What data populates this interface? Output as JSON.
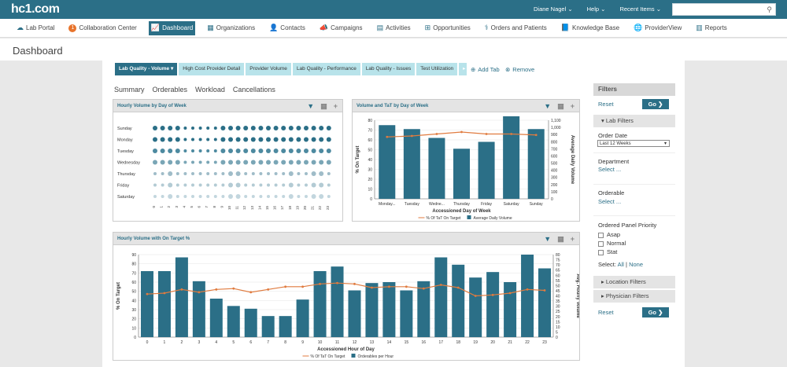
{
  "app": {
    "logo": "hc1.com"
  },
  "topbar": {
    "user": "Diane Nagel ⌄",
    "help": "Help ⌄",
    "recent": "Recent Items ⌄",
    "search_placeholder": ""
  },
  "nav": {
    "items": [
      "Lab Portal",
      "Collaboration Center",
      "Dashboard",
      "Organizations",
      "Contacts",
      "Campaigns",
      "Activities",
      "Opportunities",
      "Orders and Patients",
      "Knowledge Base",
      "ProviderView",
      "Reports"
    ],
    "badge": "1"
  },
  "page": {
    "title": "Dashboard"
  },
  "tabs": {
    "items": [
      "Lab Quality - Volume",
      "High Cost Provider Detail",
      "Provider Volume",
      "Lab Quality - Performance",
      "Lab Quality - Issues",
      "Test Utilization"
    ],
    "add": "Add Tab",
    "remove": "Remove"
  },
  "subtabs": [
    "Summary",
    "Orderables",
    "Workload",
    "Cancellations"
  ],
  "panels": {
    "p1": "Hourly Volume by Day of Week",
    "p2": "Volume and TaT by Day of Week",
    "p3": "Hourly Volume with On Target %"
  },
  "filters": {
    "title": "Filters",
    "reset": "Reset",
    "go": "Go ❯",
    "lab_filters": "▾ Lab Filters",
    "order_date": "Order Date",
    "order_date_value": "Last 12 Weeks",
    "department": "Department",
    "select": "Select ...",
    "orderable": "Orderable",
    "priority": "Ordered Panel Priority",
    "priorities": [
      "Asap",
      "Normal",
      "Stat"
    ],
    "select_label": "Select:",
    "all": "All",
    "none": "None",
    "location": "▸ Location Filters",
    "physician": "▸ Physician Filters"
  },
  "chart_data": [
    {
      "type": "heatmap",
      "title": "Hourly Volume by Day of Week",
      "rows": [
        "Sunday",
        "Monday",
        "Tuesday",
        "Wednesday",
        "Thursday",
        "Friday",
        "Saturday"
      ],
      "columns": [
        "0",
        "1",
        "2",
        "3",
        "4",
        "5",
        "6",
        "7",
        "8",
        "9",
        "10",
        "11",
        "12",
        "13",
        "14",
        "15",
        "16",
        "17",
        "18",
        "19",
        "20",
        "21",
        "22",
        "23"
      ],
      "sizes": [
        [
          3,
          3,
          3,
          3,
          2,
          2,
          2,
          2,
          2,
          3,
          3,
          3,
          3,
          3,
          3,
          3,
          3,
          3,
          3,
          3,
          3,
          3,
          3,
          3
        ],
        [
          3,
          3,
          3,
          3,
          2,
          2,
          2,
          2,
          2,
          3,
          3,
          3,
          3,
          3,
          3,
          3,
          3,
          3,
          3,
          3,
          3,
          3,
          3,
          3
        ],
        [
          3,
          3,
          3,
          3,
          2,
          2,
          2,
          2,
          2,
          3,
          3,
          3,
          3,
          3,
          3,
          3,
          3,
          3,
          3,
          3,
          3,
          3,
          3,
          3
        ],
        [
          3,
          3,
          3,
          3,
          2,
          2,
          2,
          2,
          2,
          3,
          3,
          3,
          3,
          3,
          3,
          3,
          3,
          3,
          3,
          3,
          3,
          3,
          3,
          3
        ],
        [
          2,
          2,
          3,
          2,
          2,
          2,
          2,
          2,
          2,
          2,
          3,
          3,
          2,
          2,
          2,
          2,
          2,
          2,
          3,
          2,
          2,
          3,
          3,
          2
        ],
        [
          2,
          2,
          3,
          2,
          2,
          2,
          2,
          2,
          2,
          2,
          3,
          3,
          2,
          2,
          2,
          2,
          2,
          2,
          3,
          2,
          2,
          3,
          3,
          2
        ],
        [
          2,
          2,
          3,
          2,
          2,
          2,
          2,
          2,
          2,
          2,
          3,
          3,
          2,
          2,
          2,
          2,
          2,
          2,
          3,
          2,
          2,
          3,
          3,
          2
        ]
      ],
      "colors": [
        "#2b6f87",
        "#2b6f87",
        "#4d8aa0",
        "#7aa6b6",
        "#9fbcc8",
        "#b3cbd4",
        "#c2d6de"
      ]
    },
    {
      "type": "bar",
      "title": "Volume and TaT by Day of Week",
      "categories": [
        "Monday...",
        "Tuesday",
        "Wedne...",
        "Thursday",
        "Friday",
        "Saturday",
        "Sunday"
      ],
      "values": [
        75,
        71,
        62,
        51,
        58,
        84,
        71
      ],
      "line": [
        63,
        64,
        66,
        68,
        66,
        66,
        65
      ],
      "xlabel": "Accessioned Day of Week",
      "ylabel": "% On Target",
      "y2label": "Average Daily Volume",
      "ylim": [
        0,
        80
      ],
      "yticks": [
        "0",
        "10",
        "20",
        "30",
        "40",
        "50",
        "60",
        "70",
        "80"
      ],
      "y2ticks": [
        "0",
        "100",
        "200",
        "300",
        "400",
        "500",
        "600",
        "700",
        "800",
        "900",
        "1,000",
        "1,100"
      ],
      "legend": [
        "% Of TaT On Target",
        "Average Daily Volume"
      ]
    },
    {
      "type": "bar",
      "title": "Hourly Volume with On Target %",
      "categories": [
        "0",
        "1",
        "2",
        "3",
        "4",
        "5",
        "6",
        "7",
        "8",
        "9",
        "10",
        "11",
        "12",
        "13",
        "14",
        "15",
        "16",
        "17",
        "18",
        "19",
        "20",
        "21",
        "22",
        "23"
      ],
      "values": [
        72,
        72,
        87,
        61,
        42,
        34,
        31,
        23,
        23,
        41,
        72,
        77,
        51,
        59,
        60,
        51,
        61,
        87,
        79,
        65,
        71,
        60,
        90,
        75
      ],
      "line": [
        47,
        48,
        52,
        49,
        52,
        53,
        49,
        52,
        55,
        55,
        58,
        59,
        58,
        54,
        55,
        55,
        53,
        57,
        54,
        45,
        46,
        48,
        52,
        51
      ],
      "xlabel": "Accessioned Hour of Day",
      "ylabel": "% On Target",
      "y2label": "Avg. Hourly Volume",
      "ylim": [
        0,
        90
      ],
      "yticks": [
        "0",
        "10",
        "20",
        "30",
        "40",
        "50",
        "60",
        "70",
        "80",
        "90"
      ],
      "y2ticks": [
        "0",
        "5",
        "10",
        "15",
        "20",
        "25",
        "30",
        "35",
        "40",
        "45",
        "50",
        "55",
        "60",
        "65",
        "70",
        "75",
        "80"
      ],
      "legend": [
        "% Of TaT On Target",
        "Orderables per Hour"
      ]
    }
  ],
  "colors": {
    "accent": "#2b6f87",
    "line": "#e07b3f",
    "tab": "#b8e3ea"
  }
}
